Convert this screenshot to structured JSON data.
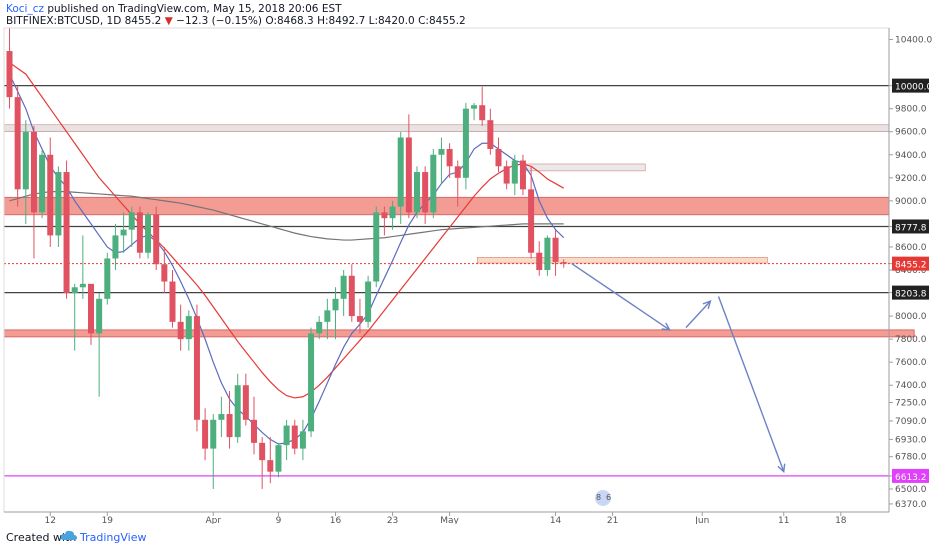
{
  "header": {
    "author": "Koci_cz",
    "published": " published on TradingView.com, May 15, 2018 20:06 EST",
    "symbol": "BITFINEX:BTCUSD, 1D",
    "last": "8455.2",
    "arrow": "▼",
    "change": "−12.3 (−0.15%)",
    "o_label": "O:",
    "o_val": "8468.3",
    "h_label": "H:",
    "h_val": "8492.7",
    "l_label": "L:",
    "l_val": "8420.0",
    "c_label": "C:",
    "c_val": "8455.2"
  },
  "footer": {
    "created_with": "Created with",
    "brand": "TradingView"
  },
  "chart_data": {
    "type": "candlestick",
    "ylim": [
      6300,
      10500
    ],
    "y_ticks": [
      6370,
      6500,
      6613.2,
      6780,
      6930,
      7090,
      7250,
      7400,
      7600,
      7800,
      8000,
      8203.8,
      8400,
      8455.2,
      8600,
      8777.8,
      9000,
      9200,
      9400,
      9600,
      9800,
      10000,
      10400
    ],
    "highlighted_prices": [
      {
        "label": "10000.0",
        "value": 10000,
        "style": "dark"
      },
      {
        "label": "8777.8",
        "value": 8777.8,
        "style": "dark"
      },
      {
        "label": "8455.2",
        "value": 8455.2,
        "style": "red"
      },
      {
        "label": "8203.8",
        "value": 8203.8,
        "style": "dark"
      },
      {
        "label": "6613.2",
        "value": 6613.2,
        "style": "magenta"
      }
    ],
    "x_labels": [
      {
        "text": "12",
        "index": 5
      },
      {
        "text": "19",
        "index": 12
      },
      {
        "text": "Apr",
        "index": 25
      },
      {
        "text": "9",
        "index": 33
      },
      {
        "text": "16",
        "index": 40
      },
      {
        "text": "23",
        "index": 47
      },
      {
        "text": "May",
        "index": 54
      },
      {
        "text": "14",
        "index": 67
      },
      {
        "text": "21",
        "index": 74
      },
      {
        "text": "Jun",
        "index": 85
      },
      {
        "text": "11",
        "index": 95
      },
      {
        "text": "18",
        "index": 102
      }
    ],
    "candles": [
      [
        10300,
        10500,
        9800,
        9900
      ],
      [
        9900,
        10000,
        8950,
        9100
      ],
      [
        9100,
        9700,
        8800,
        9600
      ],
      [
        9600,
        9650,
        8500,
        8900
      ],
      [
        8900,
        9450,
        8850,
        9400
      ],
      [
        9400,
        9550,
        8600,
        8700
      ],
      [
        8700,
        9300,
        8600,
        9250
      ],
      [
        9250,
        9350,
        8150,
        8200
      ],
      [
        8200,
        8280,
        7700,
        8250
      ],
      [
        8250,
        8700,
        8150,
        8280
      ],
      [
        8280,
        8250,
        7750,
        7850
      ],
      [
        7850,
        8200,
        7300,
        8150
      ],
      [
        8150,
        8550,
        8100,
        8500
      ],
      [
        8500,
        8800,
        8400,
        8700
      ],
      [
        8700,
        8900,
        8550,
        8750
      ],
      [
        8750,
        8950,
        8600,
        8900
      ],
      [
        8900,
        8950,
        8500,
        8550
      ],
      [
        8550,
        8900,
        8500,
        8880
      ],
      [
        8880,
        8950,
        8400,
        8450
      ],
      [
        8450,
        8600,
        8200,
        8300
      ],
      [
        8300,
        8400,
        7900,
        7950
      ],
      [
        7950,
        8100,
        7700,
        7800
      ],
      [
        7800,
        8050,
        7700,
        8000
      ],
      [
        8000,
        8100,
        7000,
        7100
      ],
      [
        7100,
        7200,
        6750,
        6850
      ],
      [
        6850,
        7150,
        6500,
        7100
      ],
      [
        7100,
        7300,
        6950,
        7150
      ],
      [
        7150,
        7350,
        6850,
        6950
      ],
      [
        6950,
        7500,
        6900,
        7400
      ],
      [
        7400,
        7500,
        7050,
        7100
      ],
      [
        7100,
        7300,
        6800,
        6900
      ],
      [
        6900,
        6950,
        6500,
        6750
      ],
      [
        6750,
        6950,
        6550,
        6650
      ],
      [
        6650,
        6900,
        6600,
        6880
      ],
      [
        6880,
        7100,
        6750,
        7050
      ],
      [
        7050,
        7100,
        6800,
        6850
      ],
      [
        6850,
        7100,
        6750,
        7000
      ],
      [
        7000,
        7900,
        6950,
        7850
      ],
      [
        7850,
        8000,
        7800,
        7950
      ],
      [
        7950,
        8150,
        7800,
        8050
      ],
      [
        8050,
        8250,
        7800,
        8150
      ],
      [
        8150,
        8400,
        8000,
        8350
      ],
      [
        8350,
        8450,
        7950,
        8000
      ],
      [
        8000,
        8150,
        7850,
        7950
      ],
      [
        7950,
        8350,
        7900,
        8300
      ],
      [
        8300,
        8950,
        8250,
        8900
      ],
      [
        8900,
        8950,
        8700,
        8850
      ],
      [
        8850,
        9000,
        8750,
        8950
      ],
      [
        8950,
        9600,
        8800,
        9550
      ],
      [
        9550,
        9750,
        8850,
        8900
      ],
      [
        8900,
        9300,
        8850,
        9250
      ],
      [
        9250,
        9300,
        8800,
        8900
      ],
      [
        8900,
        9450,
        8850,
        9400
      ],
      [
        9400,
        9550,
        9150,
        9450
      ],
      [
        9450,
        9500,
        9200,
        9300
      ],
      [
        9300,
        9350,
        8950,
        9200
      ],
      [
        9200,
        9850,
        9100,
        9800
      ],
      [
        9800,
        9850,
        9700,
        9830
      ],
      [
        9830,
        9990,
        9650,
        9700
      ],
      [
        9700,
        9800,
        9400,
        9450
      ],
      [
        9450,
        9550,
        9250,
        9300
      ],
      [
        9300,
        9350,
        9100,
        9150
      ],
      [
        9150,
        9400,
        9050,
        9350
      ],
      [
        9350,
        9400,
        9050,
        9100
      ],
      [
        9100,
        9300,
        8500,
        8550
      ],
      [
        8550,
        8650,
        8350,
        8400
      ],
      [
        8400,
        8700,
        8350,
        8680
      ],
      [
        8680,
        8750,
        8350,
        8470
      ],
      [
        8468.3,
        8492.7,
        8420.0,
        8455.2
      ]
    ],
    "series": [
      {
        "name": "",
        "color": "#e53935",
        "type": "line",
        "values": [
          10200,
          10150,
          10100,
          10000,
          9900,
          9800,
          9700,
          9600,
          9500,
          9400,
          9300,
          9200,
          9120,
          9040,
          8960,
          8880,
          8800,
          8730,
          8660,
          8590,
          8510,
          8430,
          8350,
          8270,
          8180,
          8080,
          7980,
          7880,
          7780,
          7690,
          7600,
          7510,
          7430,
          7360,
          7310,
          7290,
          7300,
          7340,
          7400,
          7470,
          7550,
          7630,
          7710,
          7790,
          7870,
          7960,
          8050,
          8140,
          8230,
          8320,
          8410,
          8500,
          8590,
          8680,
          8770,
          8860,
          8950,
          9040,
          9120,
          9190,
          9240,
          9280,
          9310,
          9320,
          9300,
          9250,
          9190,
          9150,
          9110
        ]
      },
      {
        "name": "",
        "color": "#5c6bc0",
        "type": "line",
        "values": [
          10100,
          9950,
          9800,
          9600,
          9450,
          9300,
          9200,
          9120,
          9000,
          8900,
          8800,
          8700,
          8600,
          8550,
          8560,
          8620,
          8680,
          8700,
          8650,
          8560,
          8440,
          8300,
          8150,
          7980,
          7800,
          7600,
          7420,
          7280,
          7190,
          7130,
          7060,
          6990,
          6930,
          6890,
          6900,
          6930,
          6990,
          7110,
          7260,
          7420,
          7580,
          7730,
          7850,
          7930,
          8020,
          8180,
          8330,
          8480,
          8640,
          8790,
          8900,
          8980,
          9050,
          9150,
          9230,
          9250,
          9330,
          9450,
          9500,
          9500,
          9450,
          9400,
          9350,
          9330,
          9220,
          9000,
          8850,
          8750,
          8680
        ]
      },
      {
        "name": "",
        "color": "#757575",
        "type": "line",
        "values": [
          9000,
          9020,
          9040,
          9060,
          9070,
          9080,
          9080,
          9080,
          9075,
          9070,
          9065,
          9060,
          9055,
          9050,
          9045,
          9040,
          9030,
          9020,
          9010,
          9000,
          8990,
          8980,
          8965,
          8950,
          8935,
          8920,
          8900,
          8880,
          8860,
          8840,
          8820,
          8800,
          8780,
          8760,
          8740,
          8720,
          8705,
          8690,
          8680,
          8670,
          8665,
          8660,
          8660,
          8665,
          8670,
          8675,
          8680,
          8690,
          8700,
          8710,
          8720,
          8730,
          8740,
          8750,
          8755,
          8760,
          8765,
          8770,
          8775,
          8780,
          8785,
          8790,
          8795,
          8800,
          8800,
          8800,
          8800,
          8800,
          8800
        ]
      }
    ],
    "zones": [
      {
        "from": 8880,
        "to": 9030,
        "color": "#f28b82",
        "x_end_index": "chart-end"
      },
      {
        "from": 7820,
        "to": 7880,
        "color": "#f28b82",
        "x_end_index": 111
      },
      {
        "from": 9600,
        "to": 9660,
        "color": "#e0e0e0",
        "x_end_index": "chart-end"
      },
      {
        "from": 9260,
        "to": 9320,
        "color": "#e6e6e6",
        "x_start_index": 64,
        "x_end_index": 78
      },
      {
        "from": 8460,
        "to": 8510,
        "color": "#f8d6bd",
        "x_start_index": 58,
        "x_end_index": 93
      }
    ],
    "projection": [
      {
        "from": [
          69,
          8455
        ],
        "to": [
          81,
          7880
        ]
      },
      {
        "from": [
          83,
          7900
        ],
        "to": [
          86,
          8130
        ]
      },
      {
        "from": [
          87,
          8170
        ],
        "to": [
          95,
          6650
        ]
      }
    ]
  }
}
